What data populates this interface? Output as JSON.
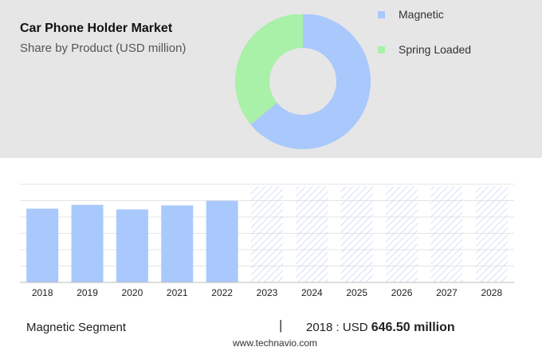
{
  "header": {
    "title": "Car Phone Holder Market",
    "subtitle": "Share by Product (USD million)"
  },
  "colors": {
    "magnetic": "#a9c8fc",
    "spring_loaded": "#a9f0a9",
    "panel": "#e6e6e6",
    "forecast_hatch": "#c9d9f5"
  },
  "chart_data": [
    {
      "type": "pie",
      "variant": "donut",
      "title": "Share by Product (USD million)",
      "series": [
        {
          "name": "Magnetic",
          "value": 64
        },
        {
          "name": "Spring Loaded",
          "value": 36
        }
      ],
      "legend_position": "right"
    },
    {
      "type": "bar",
      "categories": [
        "2018",
        "2019",
        "2020",
        "2021",
        "2022",
        "2023",
        "2024",
        "2025",
        "2026",
        "2027",
        "2028"
      ],
      "values": [
        646.5,
        680,
        640,
        675,
        715,
        840,
        840,
        840,
        840,
        840,
        840
      ],
      "forecast_from": "2023",
      "ylim": [
        0,
        860
      ],
      "grid": true,
      "series_name": "Magnetic"
    }
  ],
  "legend": {
    "items": [
      {
        "label": "Magnetic"
      },
      {
        "label": "Spring Loaded"
      }
    ]
  },
  "footer": {
    "segment_label": "Magnetic Segment",
    "divider": "|",
    "value_prefix": "2018 : USD ",
    "value_bold": "646.50 million",
    "source": "www.technavio.com"
  }
}
